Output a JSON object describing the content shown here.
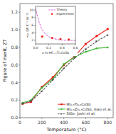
{
  "chart_data": [
    {
      "type": "line",
      "xlabel": "Temperature (°C)",
      "ylabel": "Figure of merit, ZT",
      "xlim": [
        0,
        850
      ],
      "ylim": [
        0,
        1.3
      ],
      "xticks": [
        {
          "value": 0,
          "label": "0"
        },
        200,
        400,
        600,
        800
      ],
      "yticks": [
        {
          "value": 0,
          "label": "0.0"
        },
        0.2,
        0.4,
        0.6,
        0.8,
        {
          "value": 1,
          "label": "1.0"
        },
        1.2
      ],
      "x": [
        25,
        100,
        200,
        300,
        400,
        500,
        600,
        700,
        800
      ],
      "legend": "lower right",
      "series": [
        {
          "name": "Hf₀.₅Ti₀.₅CoSb",
          "color": "#e8201a",
          "marker": "circle",
          "line_style": "solid",
          "values": [
            0.16,
            0.18,
            0.35,
            0.46,
            0.6,
            0.7,
            0.84,
            0.93,
            1.01
          ]
        },
        {
          "name": "Hf₀.₅Zr₀.₅CoSb, Xiao et al.",
          "color": "#3cb832",
          "marker": "diamond",
          "line_style": "solid",
          "values": [
            0.17,
            0.2,
            0.34,
            0.44,
            0.61,
            0.69,
            0.75,
            0.79,
            0.8
          ]
        },
        {
          "name": "SiGe, Joshi et al.",
          "color": "#555555",
          "marker": "triangle-right",
          "line_style": "dashed",
          "values": [
            0.16,
            0.19,
            0.3,
            0.43,
            0.56,
            0.68,
            0.78,
            0.87,
            0.94
          ]
        }
      ]
    },
    {
      "type": "line",
      "xlabel": "x in Hf₁₋ₓTiₓCoSb",
      "ylabel": "κₗₐₜ (W K⁻¹ m⁻¹)",
      "xlim": [
        0.0,
        0.6
      ],
      "ylim": [
        1,
        11
      ],
      "xticks": [
        {
          "value": 0,
          "label": "0.0"
        },
        0.2,
        0.4,
        0.6
      ],
      "yticks": [
        2,
        4,
        6,
        8,
        10
      ],
      "legend": "upper right",
      "series": [
        {
          "name": "Theory",
          "color": "#cc44cc",
          "type": "line",
          "line_style": "dashed",
          "x": [
            0.0,
            0.02,
            0.05,
            0.08,
            0.1,
            0.15,
            0.2,
            0.25,
            0.3,
            0.35,
            0.4,
            0.45,
            0.5,
            0.55,
            0.6
          ],
          "values": [
            10.5,
            9.0,
            7.0,
            5.5,
            4.8,
            3.6,
            2.9,
            2.5,
            2.3,
            2.15,
            2.05,
            2.0,
            1.97,
            1.95,
            1.94
          ]
        },
        {
          "name": "experiment",
          "color": "#e8201a",
          "type": "scatter",
          "marker": "circle",
          "x": [
            0.1,
            0.25,
            0.375,
            0.5
          ],
          "values": [
            3.0,
            2.6,
            2.3,
            2.2
          ]
        }
      ]
    }
  ]
}
